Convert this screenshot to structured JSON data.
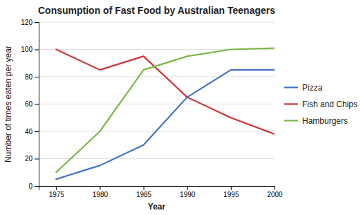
{
  "chart_data": {
    "type": "line",
    "title": "Consumption of Fast Food by Australian Teenagers",
    "xlabel": "Year",
    "ylabel": "Number of times eaten per year",
    "x": [
      1975,
      1980,
      1985,
      1990,
      1995,
      2000
    ],
    "series": [
      {
        "name": "Pizza",
        "color": "#4472C4",
        "values": [
          5,
          15,
          30,
          65,
          85,
          85
        ]
      },
      {
        "name": "Fish and Chips",
        "color": "#CC3333",
        "values": [
          100,
          85,
          95,
          65,
          50,
          38
        ]
      },
      {
        "name": "Hamburgers",
        "color": "#7AB648",
        "values": [
          10,
          40,
          85,
          95,
          100,
          101
        ]
      }
    ],
    "xlim": [
      1973,
      2000
    ],
    "xticks": [
      1975,
      1980,
      1985,
      1990,
      1995,
      2000
    ],
    "ylim": [
      0,
      120
    ],
    "yticks": [
      0,
      20,
      40,
      60,
      80,
      100,
      120
    ],
    "grid": "y",
    "legend": "right"
  }
}
